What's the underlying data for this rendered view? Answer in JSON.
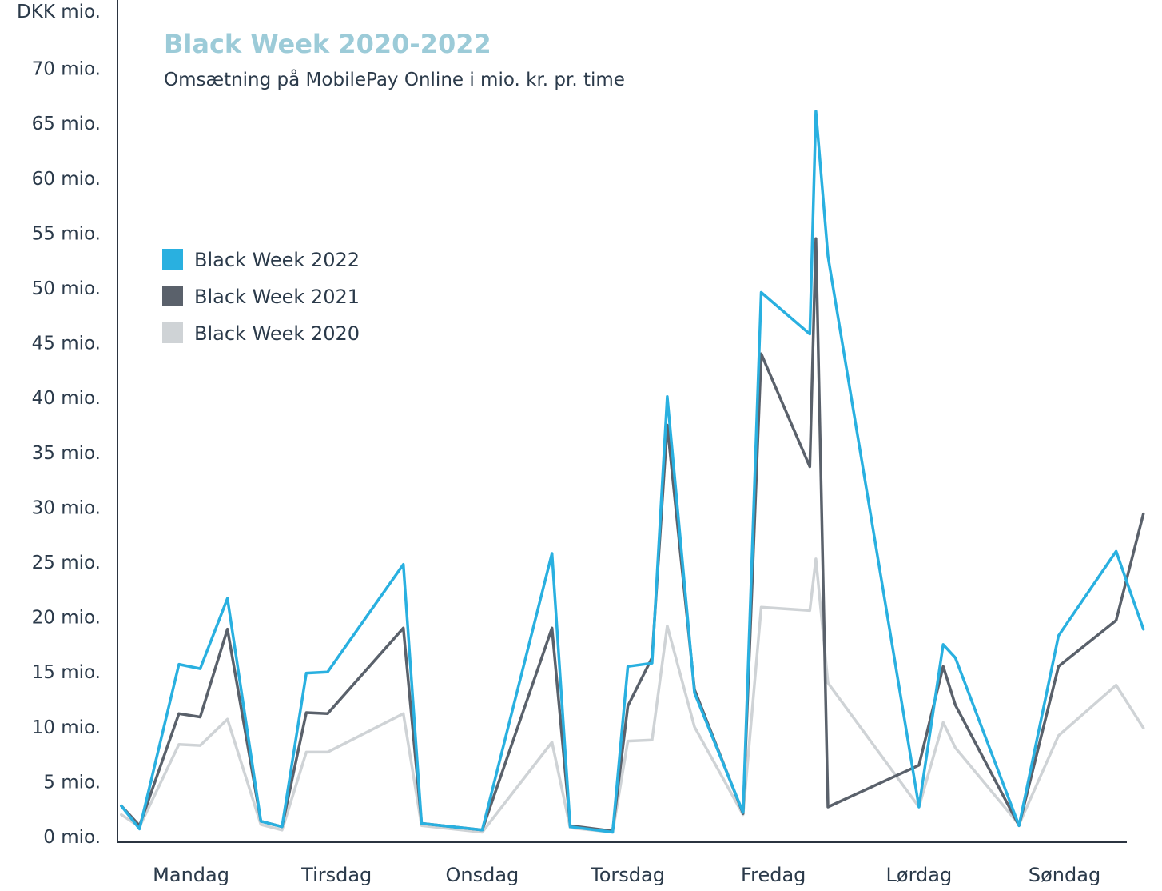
{
  "chart_data": {
    "type": "line",
    "title": "Black Week 2020-2022",
    "subtitle": "Omsætning på MobilePay Online i mio. kr. pr. time",
    "ylabel": "DKK mio.",
    "ylim": [
      0,
      73
    ],
    "yticks": [
      {
        "value": 0,
        "label": "0 mio."
      },
      {
        "value": 5,
        "label": "5 mio."
      },
      {
        "value": 10,
        "label": "10 mio."
      },
      {
        "value": 15,
        "label": "15 mio."
      },
      {
        "value": 20,
        "label": "20 mio."
      },
      {
        "value": 25,
        "label": "25 mio."
      },
      {
        "value": 30,
        "label": "30 mio."
      },
      {
        "value": 35,
        "label": "35 mio."
      },
      {
        "value": 40,
        "label": "40 mio."
      },
      {
        "value": 45,
        "label": "45 mio."
      },
      {
        "value": 50,
        "label": "50 mio."
      },
      {
        "value": 55,
        "label": "55 mio."
      },
      {
        "value": 60,
        "label": "60 mio."
      },
      {
        "value": 65,
        "label": "65 mio."
      },
      {
        "value": 70,
        "label": "70 mio."
      }
    ],
    "x_unit": "hour of week (0-168)",
    "xlim": [
      0,
      168
    ],
    "categories": [
      {
        "label": "Mandag",
        "x": 12
      },
      {
        "label": "Tirsdag",
        "x": 36
      },
      {
        "label": "Onsdag",
        "x": 60
      },
      {
        "label": "Torsdag",
        "x": 84
      },
      {
        "label": "Fredag",
        "x": 108
      },
      {
        "label": "Lørdag",
        "x": 132
      },
      {
        "label": "Søndag",
        "x": 156
      }
    ],
    "legend_position": "upper-left",
    "series": [
      {
        "name": "Black Week 2022",
        "color": "#29b0e0",
        "x": [
          0.5,
          3.5,
          10,
          13.5,
          18,
          23.5,
          27,
          31,
          34.5,
          47,
          50,
          60,
          71.5,
          74.5,
          81.5,
          84,
          88,
          90.5,
          95,
          103,
          106,
          114,
          115,
          117,
          132,
          136,
          138,
          148.5,
          155,
          164.5,
          169
        ],
        "y": [
          2.8,
          0.7,
          15.7,
          15.3,
          21.7,
          1.4,
          0.9,
          14.9,
          15.0,
          24.8,
          1.2,
          0.6,
          25.8,
          0.9,
          0.4,
          15.5,
          15.8,
          40.1,
          13.1,
          2.2,
          49.6,
          45.8,
          66.1,
          52.9,
          2.7,
          17.5,
          16.3,
          1.0,
          18.3,
          26.0,
          18.9
        ]
      },
      {
        "name": "Black Week 2021",
        "color": "#5a616b",
        "x": [
          0.5,
          3.5,
          10,
          13.5,
          18,
          23.5,
          27,
          31,
          34.5,
          47,
          50,
          60,
          71.5,
          74.5,
          81.5,
          84,
          88,
          90.5,
          95,
          103,
          106,
          114,
          115,
          117,
          132,
          136,
          138,
          148.5,
          155,
          164.5,
          169
        ],
        "y": [
          2.8,
          1.0,
          11.2,
          10.9,
          18.9,
          1.4,
          0.9,
          11.3,
          11.2,
          19.0,
          1.2,
          0.6,
          19.0,
          1.0,
          0.5,
          11.9,
          16.3,
          37.5,
          13.4,
          2.1,
          44.0,
          33.7,
          54.5,
          2.7,
          6.5,
          15.5,
          12.0,
          1.0,
          15.5,
          19.7,
          29.4
        ]
      },
      {
        "name": "Black Week 2020",
        "color": "#cfd3d6",
        "x": [
          0.5,
          3.5,
          10,
          13.5,
          18,
          23.5,
          27,
          31,
          34.5,
          47,
          50,
          60,
          71.5,
          74.5,
          81.5,
          84,
          88,
          90.5,
          95,
          103,
          106,
          114,
          115,
          117,
          132,
          136,
          138,
          148.5,
          155,
          164.5,
          169
        ],
        "y": [
          2.0,
          0.9,
          8.4,
          8.3,
          10.7,
          1.1,
          0.6,
          7.7,
          7.7,
          11.2,
          1.0,
          0.4,
          8.6,
          0.8,
          0.4,
          8.7,
          8.8,
          19.2,
          10.0,
          2.0,
          20.9,
          20.6,
          25.3,
          14.0,
          2.7,
          10.4,
          8.1,
          1.1,
          9.2,
          13.8,
          9.9
        ]
      }
    ]
  }
}
